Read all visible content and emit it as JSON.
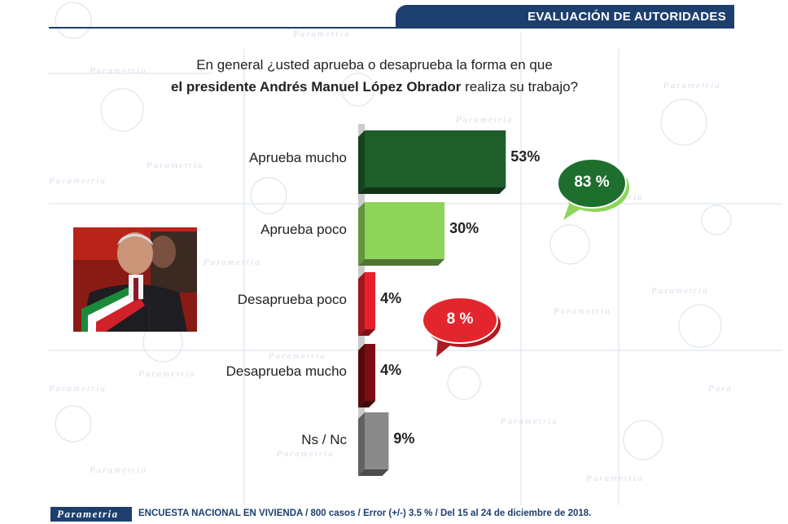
{
  "header": {
    "title": "EVALUACIÓN DE AUTORIDADES"
  },
  "question": {
    "line1": "En general ¿usted aprueba o desaprueba la forma en que",
    "line2_bold": "el presidente Andrés Manuel López Obrador",
    "line2_rest": " realiza su trabajo?"
  },
  "chart_data": {
    "type": "bar",
    "orientation": "horizontal",
    "categories": [
      "Aprueba mucho",
      "Aprueba poco",
      "Desaprueba poco",
      "Desaprueba mucho",
      "Ns / Nc"
    ],
    "values": [
      53,
      30,
      4,
      4,
      9
    ],
    "value_labels": [
      "53%",
      "30%",
      "4%",
      "4%",
      "9%"
    ],
    "colors": [
      "#1e5e2a",
      "#8fd45a",
      "#e8202a",
      "#7b0e14",
      "#8a8a8a"
    ],
    "grid": false,
    "legend": "none",
    "callouts": [
      {
        "label": "83 %",
        "color": "#1e6e2e"
      },
      {
        "label": "8 %",
        "color": "#e3262d"
      }
    ]
  },
  "watermark": {
    "brand": "Parametria"
  },
  "footer": {
    "brand": "Parametria",
    "text": "ENCUESTA NACIONAL EN VIVIENDA / 800 casos / Error (+/-) 3.5 % / Del 15 al 24 de diciembre de 2018."
  },
  "photo": {
    "icon": "president-photo"
  }
}
